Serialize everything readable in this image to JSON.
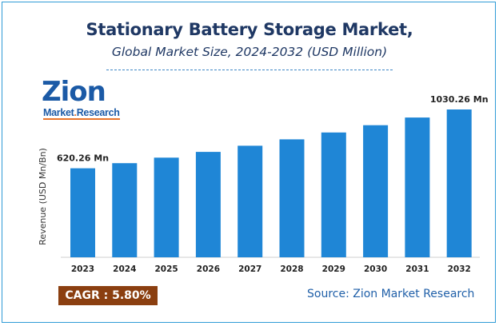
{
  "chart_data": {
    "type": "bar",
    "title": "Stationary Battery Storage Market,",
    "subtitle": "Global Market Size, 2024-2032 (USD Million)",
    "ylabel": "Revenue (USD Mn/Bn)",
    "xlabel": "",
    "categories": [
      "2023",
      "2024",
      "2025",
      "2026",
      "2027",
      "2028",
      "2029",
      "2030",
      "2031",
      "2032"
    ],
    "values": [
      620.26,
      656.24,
      694.3,
      734.57,
      777.17,
      822.25,
      869.94,
      920.4,
      973.78,
      1030.26
    ],
    "data_labels": [
      {
        "category": "2023",
        "text": "620.26 Mn"
      },
      {
        "category": "2032",
        "text": "1030.26 Mn"
      }
    ],
    "bar_color": "#1f86d6",
    "ylim": [
      0,
      1150
    ],
    "grid": false,
    "legend": "none"
  },
  "logo": {
    "main": "Zion",
    "sub_left": "Market",
    "sub_dot": ".",
    "sub_right": "Research"
  },
  "cagr": "CAGR : 5.80%",
  "source": "Source: Zion Market Research"
}
